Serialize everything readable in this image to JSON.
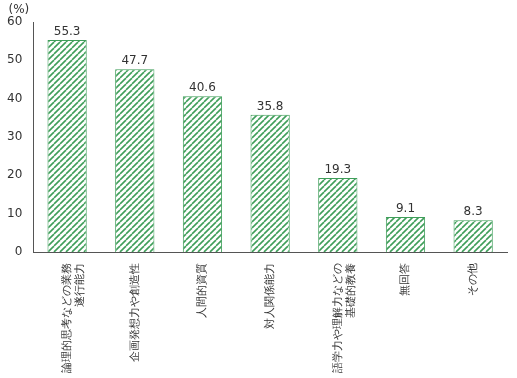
{
  "chart_data": {
    "type": "bar",
    "y_label": "(%)",
    "categories": [
      "論理的思考などの業務遂行能力",
      "企画発想力や創造性",
      "人間的資質",
      "対人関係能力",
      "語学力や理解力などの基礎的教養",
      "無回答",
      "その他"
    ],
    "values": [
      55.3,
      47.7,
      40.6,
      35.8,
      19.3,
      9.1,
      8.3
    ],
    "color": "#3f9e5a",
    "ylim": [
      0,
      60
    ],
    "yticks": [
      0,
      10,
      20,
      30,
      40,
      50,
      60
    ],
    "grid": false,
    "data_labels": true
  }
}
